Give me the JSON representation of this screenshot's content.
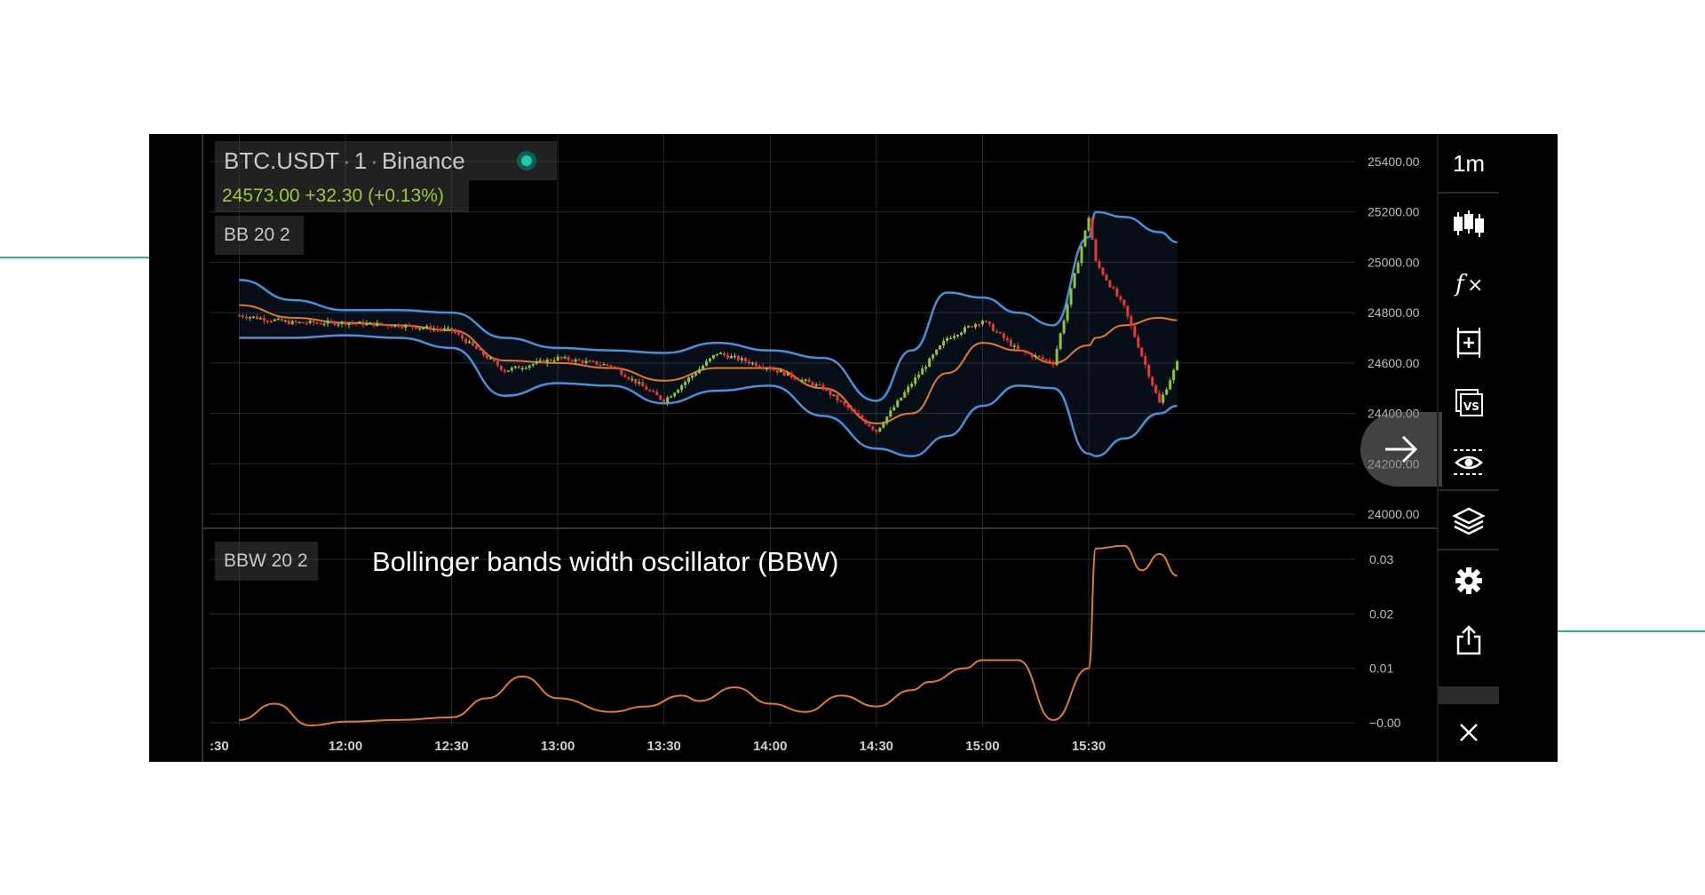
{
  "header": {
    "symbol": "BTC.USDT",
    "interval": "1",
    "exchange": "Binance",
    "separator": "·",
    "price_line": "24573.00  +32.30 (+0.13%)",
    "bb_label": "BB 20 2",
    "bbw_label": "BBW 20 2",
    "annotation": "Bollinger bands width oscillator (BBW)"
  },
  "toolbar": {
    "interval_label": "1m",
    "icons": [
      "candlestick-icon",
      "fx-icon",
      "add-frame-icon",
      "compare-icon",
      "eye-icon",
      "layers-icon",
      "gear-icon",
      "share-icon",
      "close-icon"
    ]
  },
  "colors": {
    "background": "#000000",
    "bollinger_band": "#4a90d9",
    "band_basis": "#e07b2a",
    "bbw_line": "#e07b2a",
    "up_candle": "#8fc43a",
    "down_candle": "#e03a3a",
    "grid": "#2a2a2a",
    "decoration_line": "#2cb58c"
  },
  "chart_data": [
    {
      "type": "candlestick",
      "series": [
        {
          "name": "BB 20 2",
          "kind": "bollinger_bands"
        }
      ],
      "x_ticks": [
        ":30",
        "12:00",
        "12:30",
        "13:00",
        "13:30",
        "14:00",
        "14:30",
        "15:00",
        "15:30"
      ],
      "x": [
        "11:30",
        "11:45",
        "12:00",
        "12:15",
        "12:30",
        "12:45",
        "13:00",
        "13:15",
        "13:30",
        "13:45",
        "14:00",
        "14:15",
        "14:30",
        "14:40",
        "14:50",
        "15:00",
        "15:10",
        "15:20",
        "15:30",
        "15:32",
        "15:40",
        "15:50",
        "15:55"
      ],
      "price": [
        24790,
        24760,
        24760,
        24750,
        24730,
        24570,
        24620,
        24590,
        24450,
        24640,
        24580,
        24500,
        24330,
        24520,
        24700,
        24770,
        24650,
        24600,
        25180,
        25000,
        24820,
        24440,
        24600
      ],
      "upper_band": [
        24930,
        24850,
        24810,
        24810,
        24800,
        24700,
        24660,
        24650,
        24640,
        24680,
        24650,
        24620,
        24450,
        24650,
        24880,
        24860,
        24800,
        24750,
        25100,
        25200,
        25180,
        25120,
        25080
      ],
      "lower_band": [
        24700,
        24700,
        24710,
        24700,
        24660,
        24470,
        24520,
        24510,
        24440,
        24490,
        24510,
        24390,
        24260,
        24230,
        24310,
        24430,
        24510,
        24500,
        24240,
        24230,
        24300,
        24400,
        24430
      ],
      "basis": [
        24830,
        24780,
        24760,
        24750,
        24730,
        24610,
        24600,
        24580,
        24530,
        24580,
        24580,
        24500,
        24360,
        24400,
        24560,
        24680,
        24650,
        24600,
        24670,
        24700,
        24750,
        24780,
        24770
      ],
      "y_ticks": [
        "25400.00",
        "25200.00",
        "25000.00",
        "24800.00",
        "24600.00",
        "24400.00",
        "24200.00",
        "24000.00"
      ],
      "ylim": [
        24000,
        25400
      ],
      "grid": true
    },
    {
      "type": "line",
      "series": [
        {
          "name": "BBW 20 2"
        }
      ],
      "x": [
        "11:30",
        "11:40",
        "11:50",
        "12:00",
        "12:15",
        "12:30",
        "12:40",
        "12:50",
        "13:00",
        "13:15",
        "13:25",
        "13:35",
        "13:40",
        "13:50",
        "14:00",
        "14:10",
        "14:20",
        "14:30",
        "14:40",
        "14:45",
        "14:55",
        "15:00",
        "15:10",
        "15:20",
        "15:30",
        "15:32",
        "15:40",
        "15:45",
        "15:50",
        "15:55"
      ],
      "values": [
        0.0005,
        0.0035,
        -0.0005,
        0.0002,
        0.0005,
        0.001,
        0.0045,
        0.0085,
        0.0045,
        0.002,
        0.003,
        0.005,
        0.004,
        0.0065,
        0.0035,
        0.002,
        0.005,
        0.003,
        0.006,
        0.0075,
        0.01,
        0.0115,
        0.0115,
        0.0005,
        0.01,
        0.032,
        0.0325,
        0.028,
        0.031,
        0.027
      ],
      "y_ticks": [
        "0.03",
        "0.02",
        "0.01",
        "−0.00"
      ],
      "ylim": [
        -0.001,
        0.035
      ],
      "grid": true
    }
  ]
}
